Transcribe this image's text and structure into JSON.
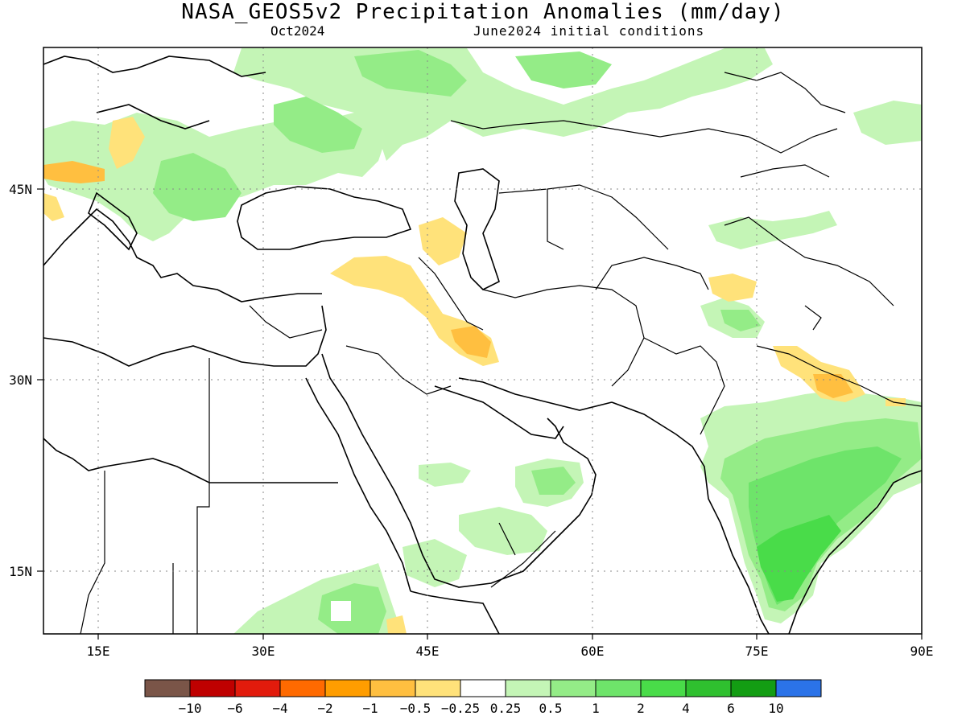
{
  "title": "NASA_GEOS5v2 Precipitation Anomalies (mm/day)",
  "subtitle_left": "Oct2024",
  "subtitle_right": "June2024 initial conditions",
  "lat_labels": [
    "45N",
    "30N",
    "15N"
  ],
  "lon_labels": [
    "15E",
    "30E",
    "45E",
    "60E",
    "75E",
    "90E"
  ],
  "colorbar": {
    "colors": [
      "#7a5548",
      "#bf0000",
      "#e21b0c",
      "#ff6a00",
      "#ff9d00",
      "#ffbf40",
      "#ffe27a",
      "#ffffff",
      "#c4f5b6",
      "#94ec87",
      "#6ee46a",
      "#49dc49",
      "#2fc02f",
      "#139d13",
      "#2b73e8"
    ],
    "labels": [
      "-10",
      "-6",
      "-4",
      "-2",
      "-1",
      "-0.5",
      "-0.25",
      "0.25",
      "0.5",
      "1",
      "2",
      "4",
      "6",
      "10"
    ]
  },
  "colors": {
    "wet_light": "#c4f5b6",
    "wet_mid": "#94ec87",
    "wet_strong": "#6ee46a",
    "wet_heavy": "#49dc49",
    "wet_max": "#2fc02f",
    "dry_light": "#ffe27a",
    "dry_mid": "#ffbf40",
    "dry_strong": "#ff9d00"
  }
}
